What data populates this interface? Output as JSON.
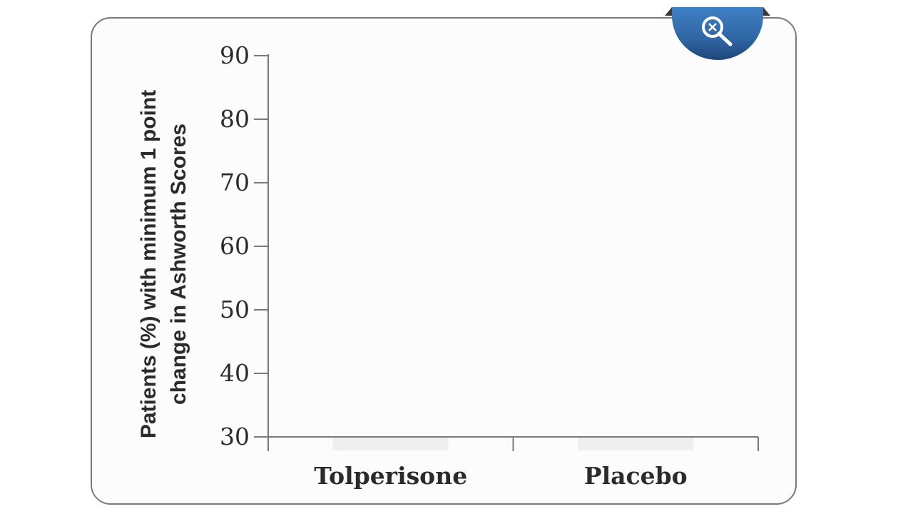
{
  "chart_data": {
    "type": "bar",
    "categories": [
      "Tolperisone",
      "Placebo"
    ],
    "values": [
      30,
      30
    ],
    "title": "",
    "xlabel": "",
    "ylabel_lines": [
      "Patients (%) with minimum 1 point",
      "change in Ashworth Scores"
    ],
    "ylim": [
      30,
      90
    ],
    "yticks": [
      90,
      80,
      70,
      60,
      50,
      40,
      30
    ],
    "grid": false,
    "bar_color": "#e6e6e6",
    "axis_color": "#7a7a7a"
  },
  "toolbar": {
    "zoom_icon": "zoom-out-magnifier-icon",
    "badge_color": "#2f66a4"
  }
}
